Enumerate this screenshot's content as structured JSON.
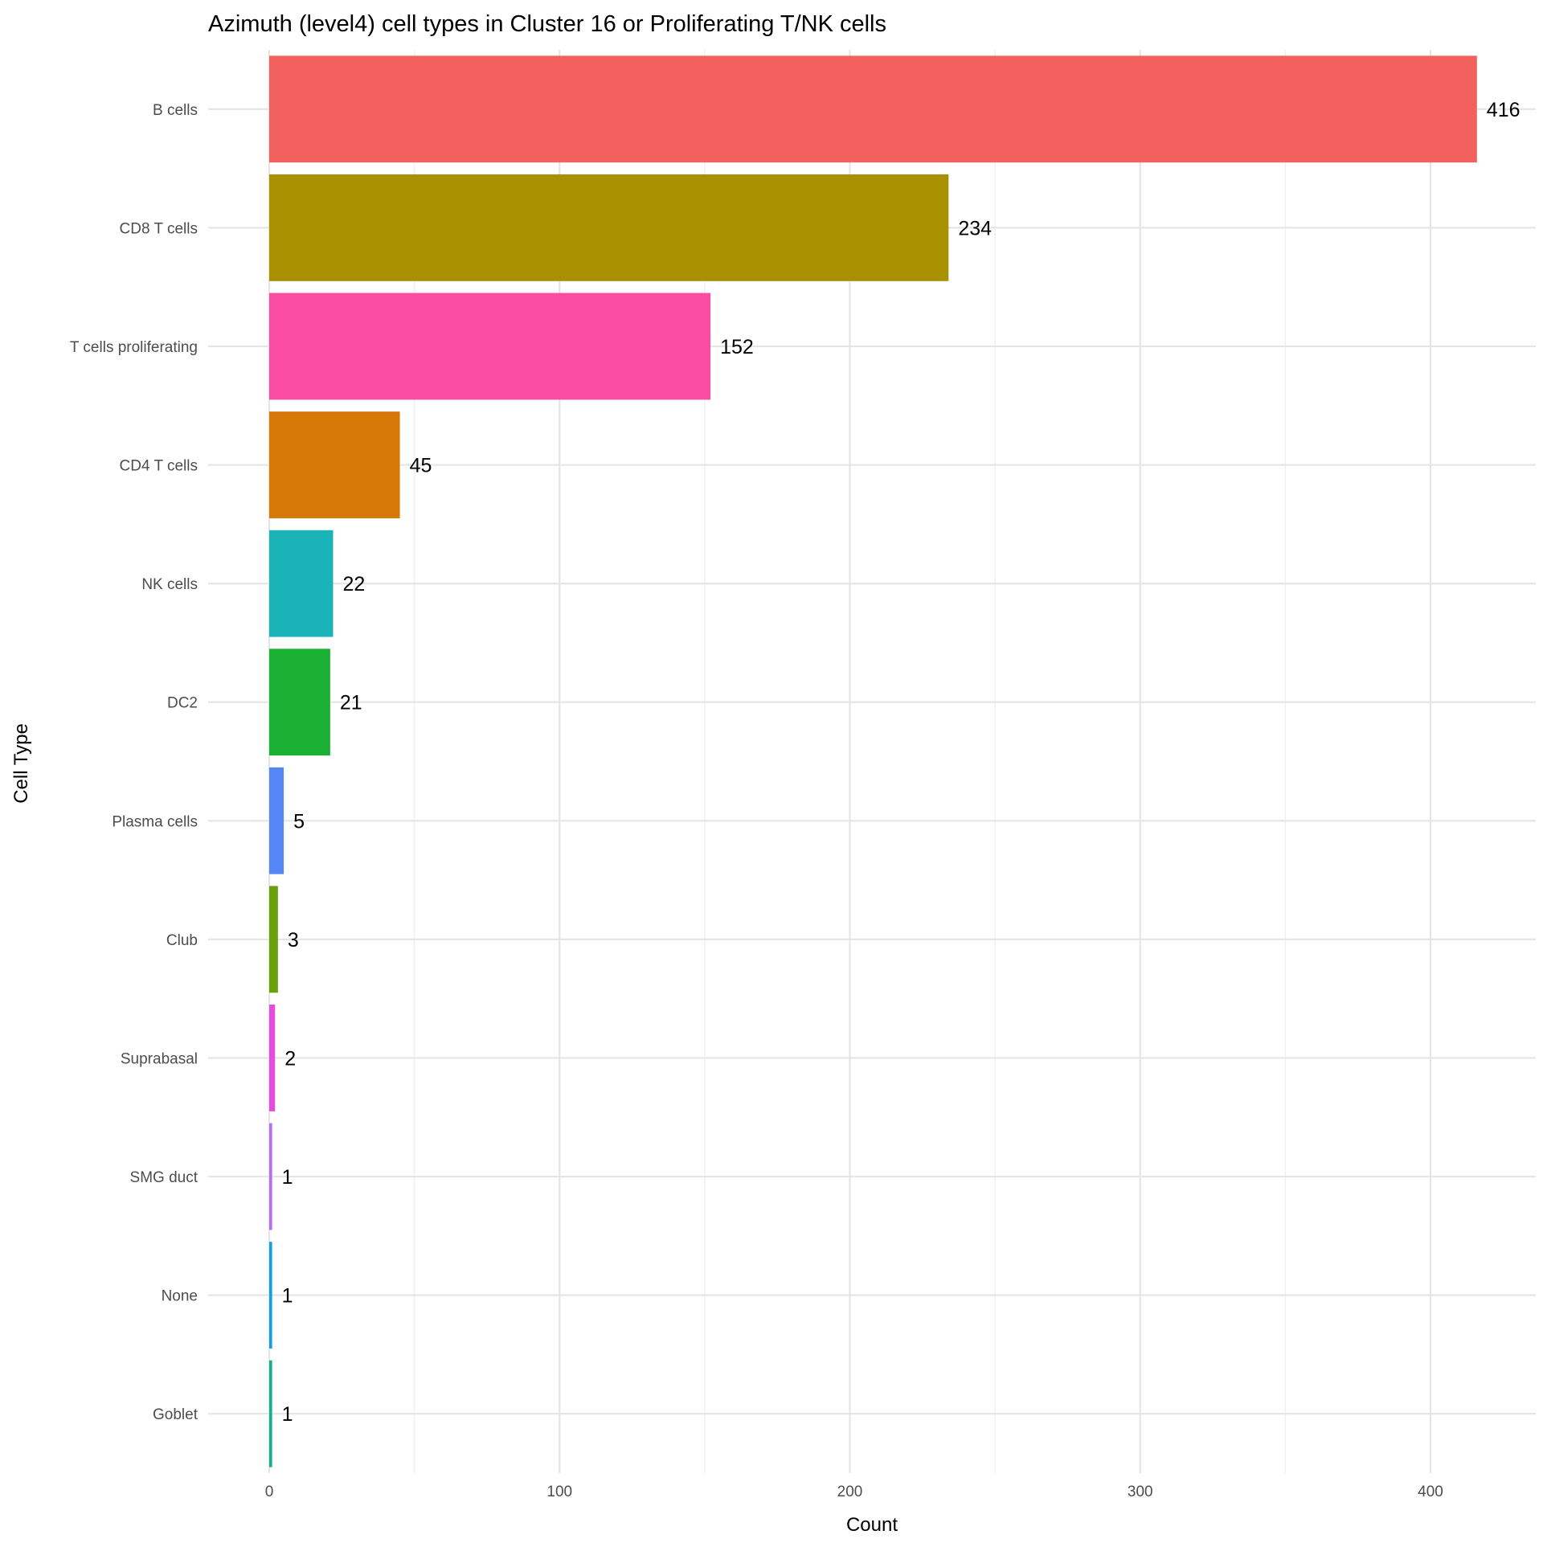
{
  "chart_data": {
    "type": "bar",
    "orientation": "horizontal",
    "title": "Azimuth (level4) cell types in Cluster 16 or Proliferating T/NK cells",
    "xlabel": "Count",
    "ylabel": "Cell Type",
    "xlim": [
      -20,
      437
    ],
    "x_ticks": [
      0,
      100,
      200,
      300,
      400
    ],
    "x_tick_labels": [
      "0",
      "100",
      "200",
      "300",
      "400"
    ],
    "x_minor_ticks": [
      50,
      150,
      250,
      350
    ],
    "grid": true,
    "legend": "none",
    "categories": [
      "B cells",
      "CD8 T cells",
      "T cells proliferating",
      "CD4 T cells",
      "NK cells",
      "DC2",
      "Plasma cells",
      "Club",
      "Suprabasal",
      "SMG duct",
      "None",
      "Goblet"
    ],
    "values": [
      416,
      234,
      152,
      45,
      22,
      21,
      5,
      3,
      2,
      1,
      1,
      1
    ],
    "value_labels": [
      "416",
      "234",
      "152",
      "45",
      "22",
      "21",
      "5",
      "3",
      "2",
      "1",
      "1",
      "1"
    ],
    "colors": [
      "#F2615E",
      "#A89000",
      "#FB4CA3",
      "#D57807",
      "#19B3B8",
      "#19B034",
      "#5586F5",
      "#69A10A",
      "#E44CDE",
      "#B76DF5",
      "#11A0E0",
      "#0FB386"
    ]
  }
}
